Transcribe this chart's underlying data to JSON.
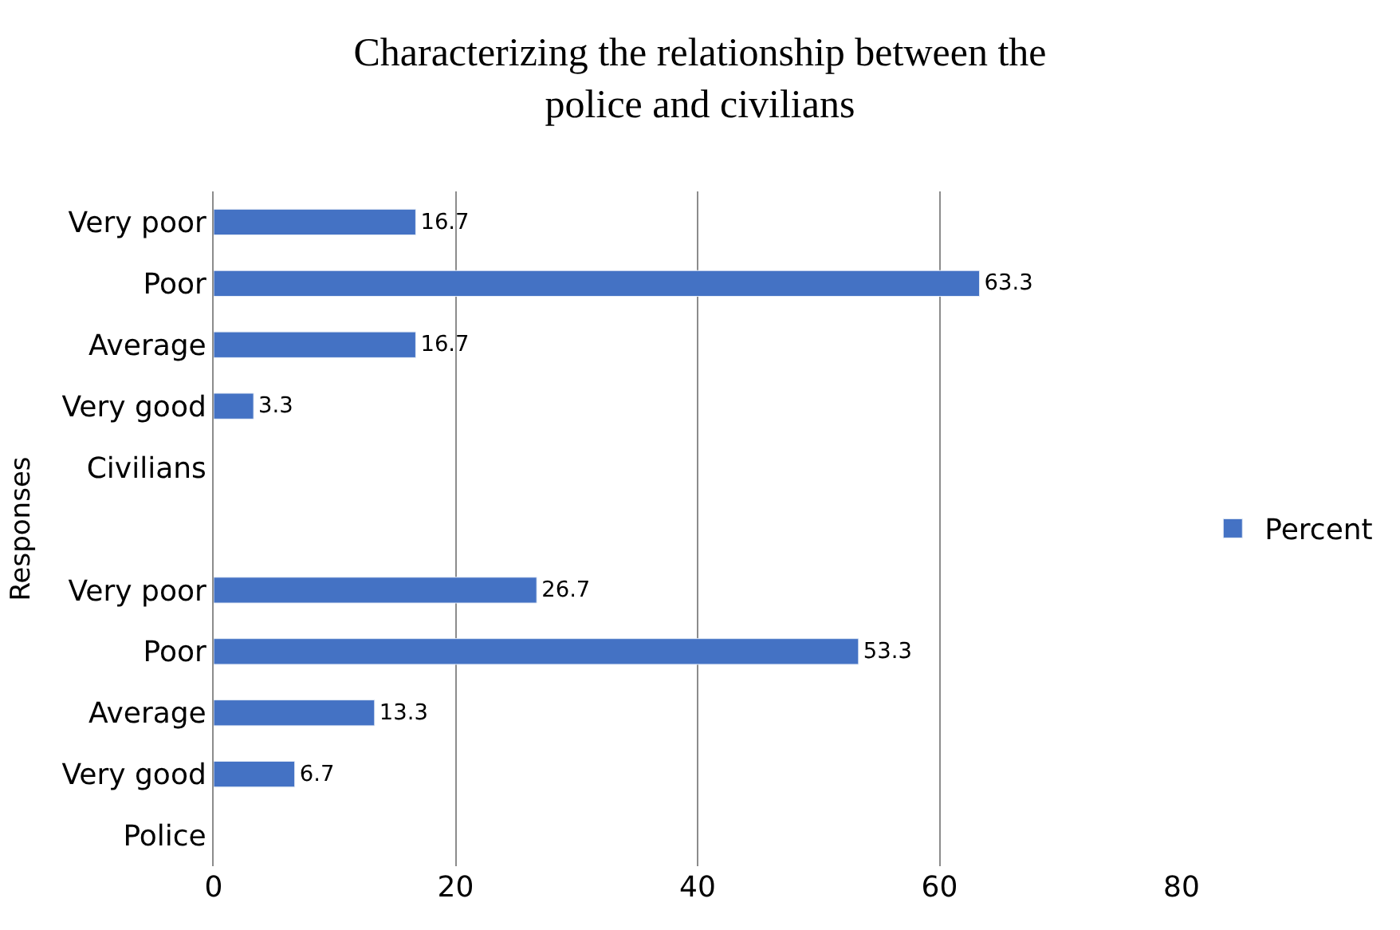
{
  "chart_data": {
    "type": "bar",
    "orientation": "horizontal",
    "title": "Characterizing the relationship between the police and civilians",
    "ylabel": "Responses",
    "categories": [
      "Very poor",
      "Poor",
      "Average",
      "Very good",
      "Civilians",
      null,
      "Very poor",
      "Poor",
      "Average",
      "Very good",
      "Police"
    ],
    "series": [
      {
        "name": "Percent",
        "color": "#4472c4",
        "values": [
          16.7,
          63.3,
          16.7,
          3.3,
          null,
          null,
          26.7,
          53.3,
          13.3,
          6.7,
          null
        ]
      }
    ],
    "xlim": [
      0,
      80
    ],
    "xticks": [
      0,
      20,
      40,
      60,
      80
    ],
    "grid": "x",
    "legend": "right",
    "data_labels": true
  }
}
